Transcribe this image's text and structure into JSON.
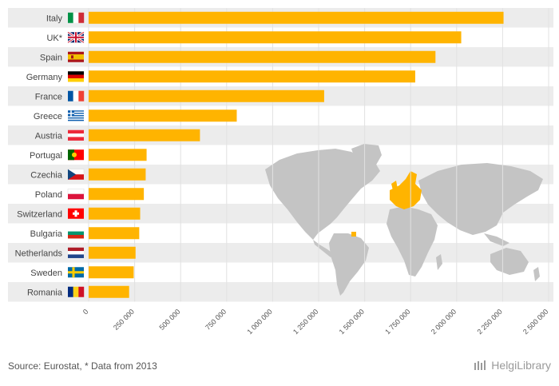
{
  "chart_data": {
    "type": "bar",
    "orientation": "horizontal",
    "categories": [
      "Italy",
      "UK*",
      "Spain",
      "Germany",
      "France",
      "Greece",
      "Austria",
      "Portugal",
      "Czechia",
      "Poland",
      "Switzerland",
      "Bulgaria",
      "Netherlands",
      "Sweden",
      "Romania"
    ],
    "values": [
      2255000,
      2025000,
      1885000,
      1775000,
      1280000,
      805000,
      605000,
      315000,
      310000,
      300000,
      280000,
      275000,
      255000,
      245000,
      220000
    ],
    "xlim": [
      0,
      2500000
    ],
    "xticks": [
      0,
      250000,
      500000,
      750000,
      1000000,
      1250000,
      1500000,
      1750000,
      2000000,
      2250000,
      2500000
    ],
    "xtick_labels": [
      "0",
      "250 000",
      "500 000",
      "750 000",
      "1 000 000",
      "1 250 000",
      "1 500 000",
      "1 750 000",
      "2 000 000",
      "2 250 000",
      "2 500 000"
    ],
    "flags": [
      "italy-flag-icon",
      "uk-flag-icon",
      "spain-flag-icon",
      "germany-flag-icon",
      "france-flag-icon",
      "greece-flag-icon",
      "austria-flag-icon",
      "portugal-flag-icon",
      "czechia-flag-icon",
      "poland-flag-icon",
      "switzerland-flag-icon",
      "bulgaria-flag-icon",
      "netherlands-flag-icon",
      "sweden-flag-icon",
      "romania-flag-icon"
    ],
    "grid": true,
    "colors": {
      "bar": "#ffb400",
      "stripe": "#ececec",
      "map": "#c4c4c4",
      "highlight": "#ffb400"
    }
  },
  "footer": {
    "source": "Source: Eurostat, * Data from 2013",
    "logo": "HelgiLibrary"
  }
}
